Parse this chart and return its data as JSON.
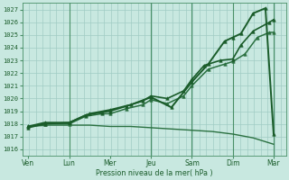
{
  "background_color": "#c8e8e0",
  "grid_color": "#a0ccc4",
  "line_color_main": "#1a5c2a",
  "ylabel": "Pression niveau de la mer( hPa )",
  "ylim": [
    1015.5,
    1027.5
  ],
  "yticks": [
    1016,
    1017,
    1018,
    1019,
    1020,
    1021,
    1022,
    1023,
    1024,
    1025,
    1026,
    1027
  ],
  "x_labels": [
    "Ven",
    "Lun",
    "Mer",
    "Jeu",
    "Sam",
    "Dim",
    "Mar"
  ],
  "x_positions": [
    0,
    1,
    2,
    3,
    4,
    5,
    6
  ],
  "xlim": [
    -0.15,
    6.3
  ],
  "lines": [
    {
      "x": [
        0,
        0.5,
        1.0,
        1.5,
        2.0,
        2.5,
        3.0,
        3.5,
        4.0,
        4.5,
        5.0,
        5.5,
        6.0
      ],
      "y": [
        1017.8,
        1017.9,
        1017.9,
        1017.9,
        1017.8,
        1017.8,
        1017.7,
        1017.6,
        1017.5,
        1017.4,
        1017.2,
        1016.9,
        1016.4
      ],
      "color": "#2a7040",
      "marker": null,
      "markersize": 0,
      "linewidth": 1.0,
      "zorder": 2
    },
    {
      "x": [
        0,
        0.4,
        1.0,
        1.4,
        1.8,
        2.0,
        2.4,
        2.8,
        3.0,
        3.4,
        3.8,
        4.0,
        4.4,
        4.8,
        5.0,
        5.3,
        5.6,
        5.9,
        6.0
      ],
      "y": [
        1017.8,
        1018.0,
        1018.0,
        1018.6,
        1018.8,
        1018.8,
        1019.2,
        1019.5,
        1019.9,
        1019.6,
        1020.2,
        1021.0,
        1022.3,
        1022.7,
        1022.9,
        1023.5,
        1024.8,
        1025.2,
        1025.2
      ],
      "color": "#2a7040",
      "marker": "^",
      "markersize": 2.5,
      "linewidth": 1.1,
      "zorder": 3
    },
    {
      "x": [
        0,
        0.4,
        1.0,
        1.4,
        1.8,
        2.0,
        2.4,
        2.8,
        3.0,
        3.4,
        3.8,
        4.0,
        4.3,
        4.7,
        5.0,
        5.2,
        5.5,
        5.9,
        6.0
      ],
      "y": [
        1017.7,
        1018.0,
        1018.1,
        1018.7,
        1018.9,
        1019.0,
        1019.4,
        1019.8,
        1020.2,
        1020.0,
        1020.6,
        1021.5,
        1022.6,
        1023.0,
        1023.1,
        1024.2,
        1025.3,
        1026.0,
        1026.2
      ],
      "color": "#1a5c2a",
      "marker": "^",
      "markersize": 2.5,
      "linewidth": 1.2,
      "zorder": 4
    },
    {
      "x": [
        0,
        0.4,
        1.0,
        1.5,
        2.0,
        2.5,
        3.0,
        3.5,
        4.0,
        4.4,
        4.8,
        5.0,
        5.2,
        5.5,
        5.8,
        6.0
      ],
      "y": [
        1017.8,
        1018.1,
        1018.1,
        1018.8,
        1019.1,
        1019.5,
        1020.1,
        1019.3,
        1021.3,
        1022.7,
        1024.5,
        1024.8,
        1025.1,
        1026.7,
        1027.1,
        1017.2
      ],
      "color": "#1a5c2a",
      "marker": "^",
      "markersize": 2.5,
      "linewidth": 1.4,
      "zorder": 5
    }
  ],
  "vline_positions": [
    1,
    3,
    4,
    5,
    6
  ],
  "vline_color": "#4a9068",
  "figsize": [
    3.2,
    2.0
  ],
  "dpi": 100
}
